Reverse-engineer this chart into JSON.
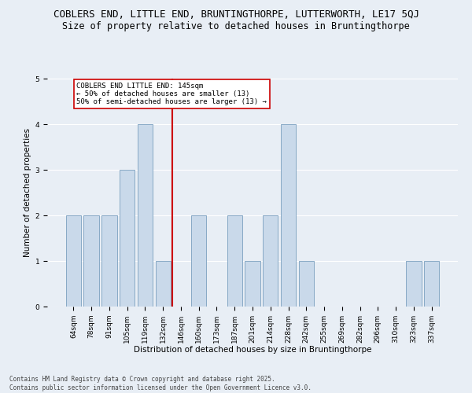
{
  "title": "COBLERS END, LITTLE END, BRUNTINGTHORPE, LUTTERWORTH, LE17 5QJ",
  "subtitle": "Size of property relative to detached houses in Bruntingthorpe",
  "xlabel": "Distribution of detached houses by size in Bruntingthorpe",
  "ylabel": "Number of detached properties",
  "categories": [
    "64sqm",
    "78sqm",
    "91sqm",
    "105sqm",
    "119sqm",
    "132sqm",
    "146sqm",
    "160sqm",
    "173sqm",
    "187sqm",
    "201sqm",
    "214sqm",
    "228sqm",
    "242sqm",
    "255sqm",
    "269sqm",
    "282sqm",
    "296sqm",
    "310sqm",
    "323sqm",
    "337sqm"
  ],
  "values": [
    2,
    2,
    2,
    3,
    4,
    1,
    0,
    2,
    0,
    2,
    1,
    2,
    4,
    1,
    0,
    0,
    0,
    0,
    0,
    1,
    1
  ],
  "bar_color": "#c9d9ea",
  "bar_edge_color": "#7a9fbf",
  "vline_x_idx": 6,
  "vline_color": "#cc0000",
  "annotation_title": "COBLERS END LITTLE END: 145sqm",
  "annotation_line1": "← 50% of detached houses are smaller (13)",
  "annotation_line2": "50% of semi-detached houses are larger (13) →",
  "annotation_box_color": "#cc0000",
  "annotation_bg": "#ffffff",
  "ylim": [
    0,
    5.0
  ],
  "yticks": [
    0,
    1,
    2,
    3,
    4,
    5
  ],
  "footer_line1": "Contains HM Land Registry data © Crown copyright and database right 2025.",
  "footer_line2": "Contains public sector information licensed under the Open Government Licence v3.0.",
  "bg_color": "#e8eef5",
  "grid_color": "#ffffff",
  "title_fontsize": 9,
  "subtitle_fontsize": 8.5,
  "axis_label_fontsize": 7.5,
  "tick_fontsize": 6.5,
  "annotation_fontsize": 6.5,
  "footer_fontsize": 5.5
}
